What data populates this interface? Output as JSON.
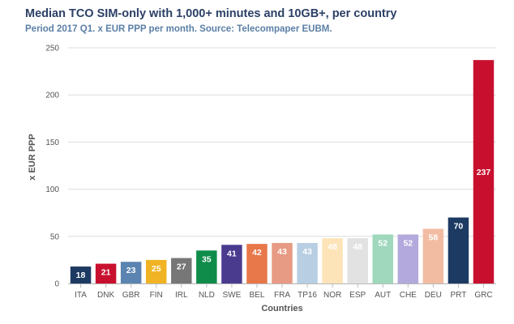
{
  "chart_data": {
    "type": "bar",
    "title": "Median TCO SIM-only with 1,000+ minutes and 10GB+, per country",
    "subtitle": "Period 2017 Q1. x EUR PPP per month. Source: Telecompaper EUBM.",
    "xlabel": "Countries",
    "ylabel": "x EUR PPP",
    "ylim": [
      0,
      250
    ],
    "yticks": [
      0,
      50,
      100,
      150,
      200,
      250
    ],
    "grid": true,
    "categories": [
      "ITA",
      "DNK",
      "GBR",
      "FIN",
      "IRL",
      "NLD",
      "SWE",
      "BEL",
      "FRA",
      "TP16",
      "NOR",
      "ESP",
      "AUT",
      "CHE",
      "DEU",
      "PRT",
      "GRC"
    ],
    "values": [
      18,
      21,
      23,
      25,
      27,
      35,
      41,
      42,
      43,
      43,
      48,
      48,
      52,
      52,
      58,
      70,
      237
    ],
    "colors": [
      "#1d3a63",
      "#c8102e",
      "#5b84b1",
      "#f0b323",
      "#777777",
      "#0f8c4a",
      "#4b3b8f",
      "#e8774a",
      "#e79a84",
      "#b8cfe3",
      "#fde4b8",
      "#e2e2e2",
      "#9fd8bd",
      "#b3a9dc",
      "#f2bca3",
      "#1d3a63",
      "#c8102e"
    ],
    "label_colors": [
      "#ffffff",
      "#ffffff",
      "#ffffff",
      "#ffffff",
      "#ffffff",
      "#ffffff",
      "#ffffff",
      "#ffffff",
      "#ffffff",
      "#ffffff",
      "#ffffff",
      "#ffffff",
      "#ffffff",
      "#ffffff",
      "#ffffff",
      "#ffffff",
      "#ffffff"
    ]
  }
}
